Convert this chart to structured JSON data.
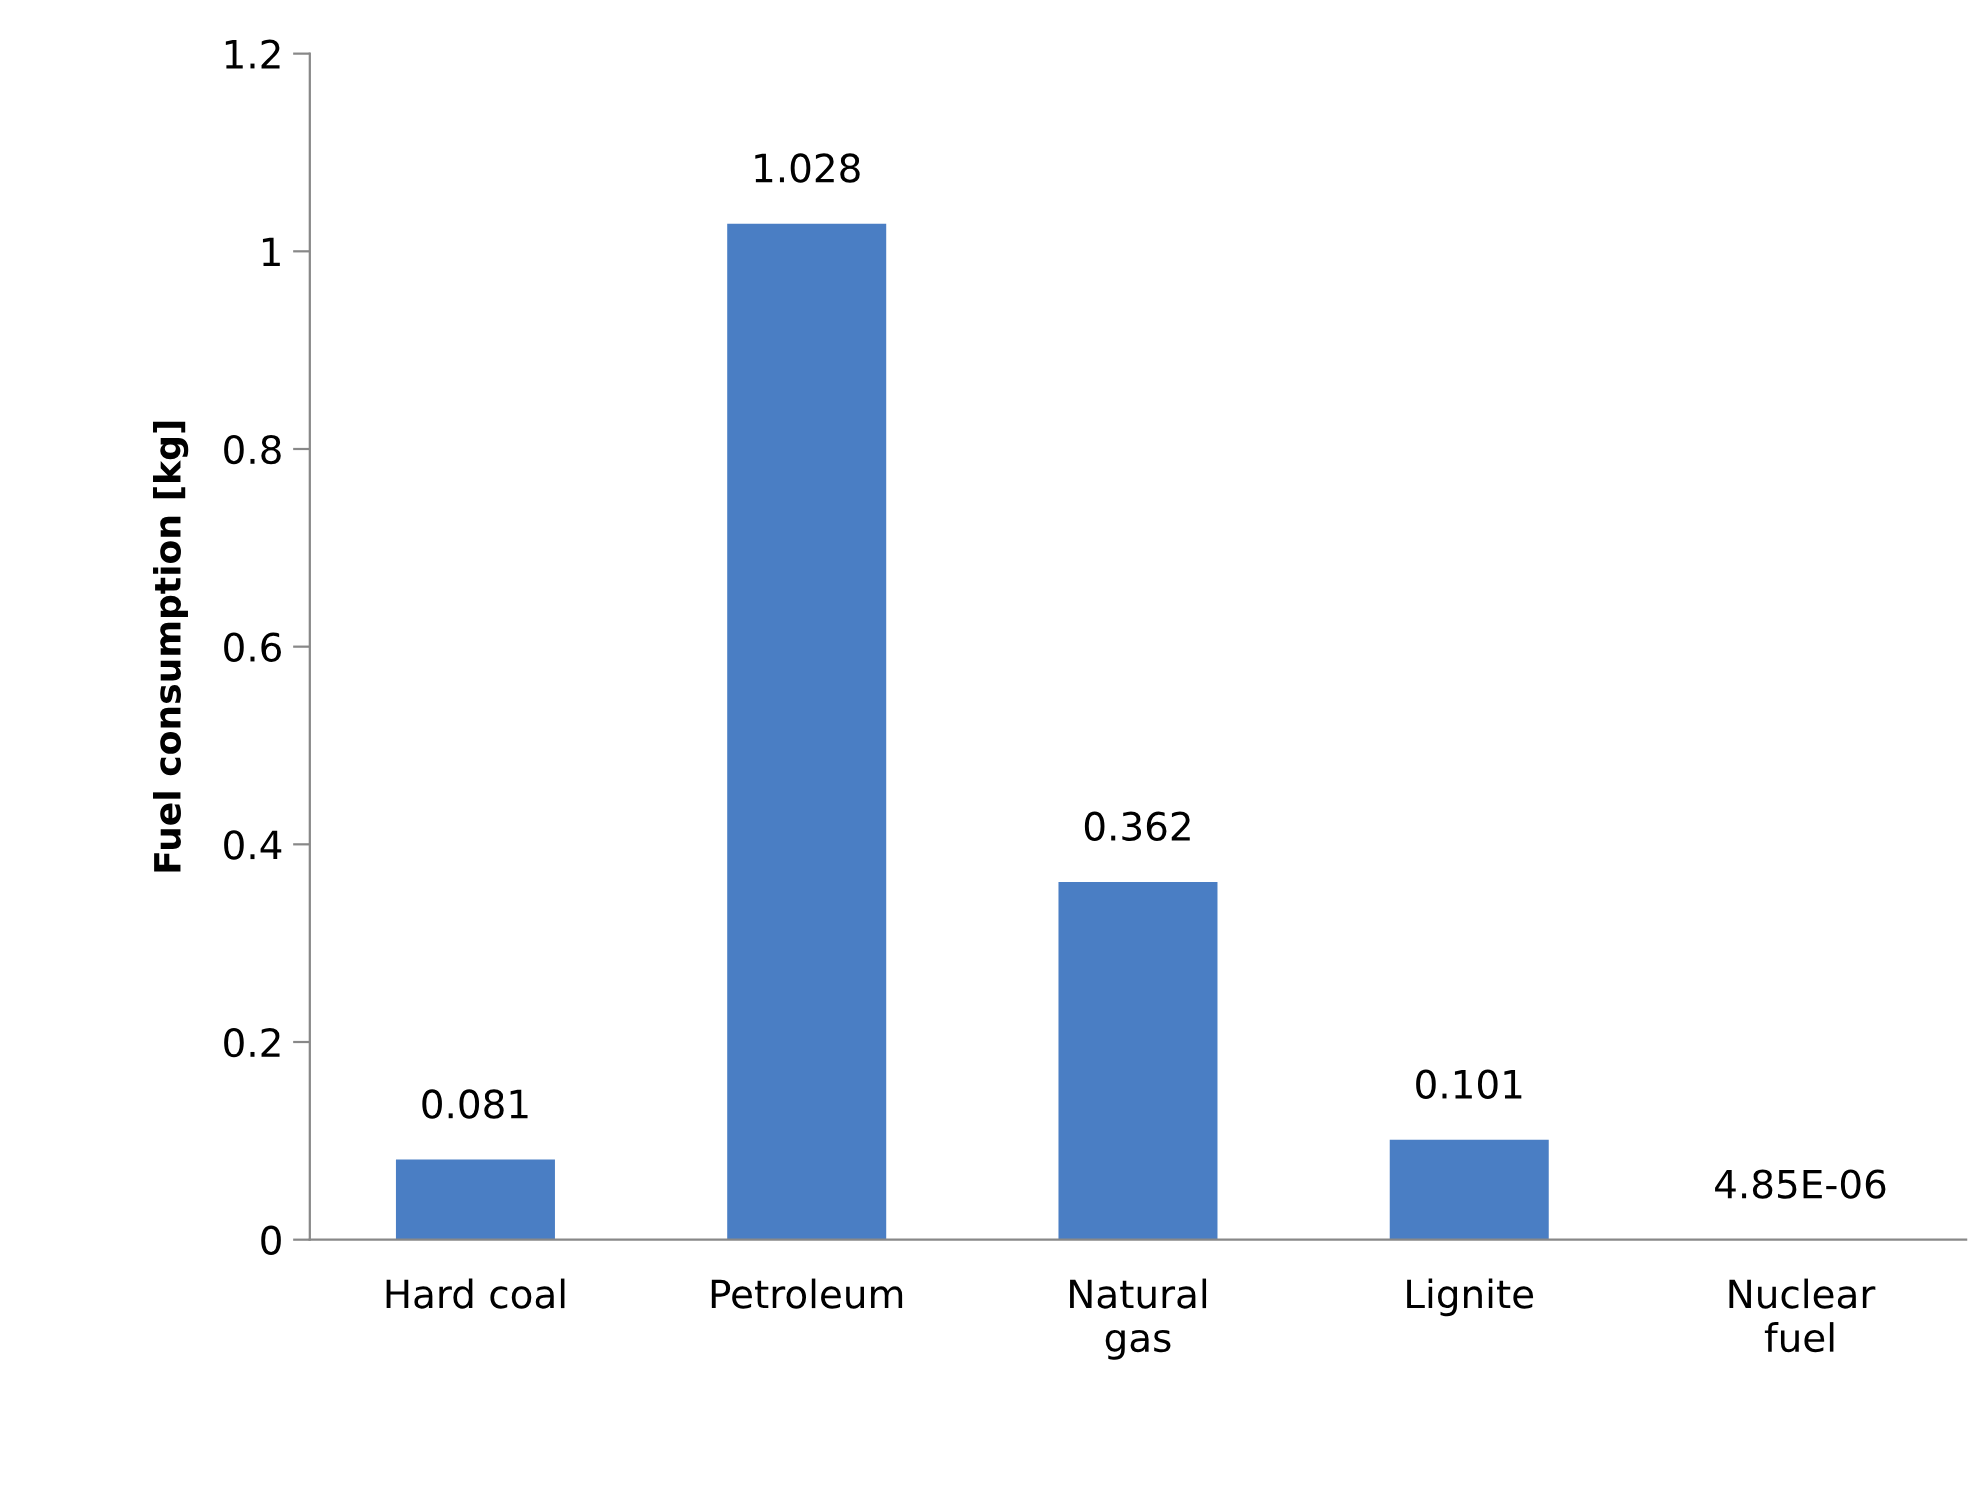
{
  "chart_data": {
    "type": "bar",
    "ylabel": "Fuel consumption [kg]",
    "categories": [
      "Hard coal",
      "Petroleum",
      "Natural\ngas",
      "Lignite",
      "Nuclear\nfuel"
    ],
    "values": [
      0.081,
      1.028,
      0.362,
      0.101,
      4.85e-06
    ],
    "value_labels": [
      "0.081",
      "1.028",
      "0.362",
      "0.101",
      "4.85E-06"
    ],
    "color": "#4a7ec4",
    "ylim": [
      0,
      1.2
    ],
    "yticks": [
      0,
      0.2,
      0.4,
      0.6,
      0.8,
      1,
      1.2
    ],
    "grid": false
  }
}
